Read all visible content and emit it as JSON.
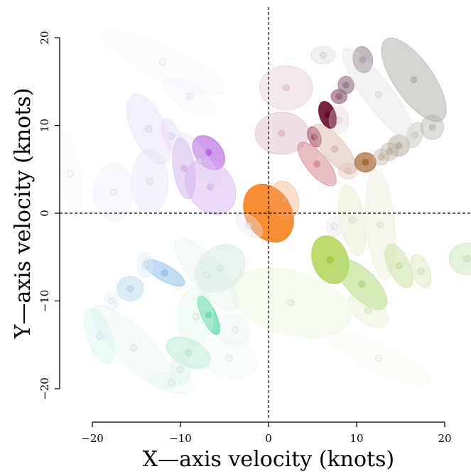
{
  "chart_data": {
    "type": "scatter",
    "title": "",
    "xlabel": "X—axis velocity (knots)",
    "ylabel": "Y—axis velocity (knots)",
    "xlim": [
      -20,
      20
    ],
    "ylim": [
      -20,
      20
    ],
    "x_ticks": [
      -20,
      -10,
      0,
      10,
      20
    ],
    "y_ticks": [
      -20,
      -10,
      0,
      10,
      20
    ],
    "x_tick_labels": [
      "−20",
      "−10",
      "0",
      "10",
      "20"
    ],
    "y_tick_labels": [
      "−20",
      "−10",
      "0",
      "10",
      "20"
    ],
    "reference_lines": [
      {
        "axis": "x",
        "value": 0,
        "style": "dashed"
      },
      {
        "axis": "y",
        "value": 0,
        "style": "dashed"
      }
    ],
    "grid": false,
    "legend": "none",
    "points": [
      {
        "x": 0.0,
        "y": 0.0,
        "rx": 2.6,
        "ry": 3.5,
        "angle": 30,
        "color": "#f5831f",
        "opacity": 0.92
      },
      {
        "x": 1.8,
        "y": 1.5,
        "rx": 1.6,
        "ry": 2.2,
        "angle": 15,
        "color": "#f5a46a",
        "opacity": 0.35
      },
      {
        "x": 2.0,
        "y": 14.3,
        "rx": 3.0,
        "ry": 2.5,
        "angle": 0,
        "color": "#dcb4c8",
        "opacity": 0.32
      },
      {
        "x": 1.5,
        "y": 9.1,
        "rx": 3.0,
        "ry": 2.4,
        "angle": 0,
        "color": "#d49ab4",
        "opacity": 0.32
      },
      {
        "x": 5.5,
        "y": 5.6,
        "rx": 1.2,
        "ry": 3.1,
        "angle": 40,
        "color": "#d47e8a",
        "opacity": 0.5
      },
      {
        "x": 5.2,
        "y": 8.7,
        "rx": 0.7,
        "ry": 1.2,
        "angle": 20,
        "color": "#a4485e",
        "opacity": 0.6
      },
      {
        "x": 6.7,
        "y": 11.2,
        "rx": 0.9,
        "ry": 1.6,
        "angle": 20,
        "color": "#6e0a2e",
        "opacity": 0.9
      },
      {
        "x": 8.0,
        "y": 13.3,
        "rx": 0.9,
        "ry": 0.8,
        "angle": 0,
        "color": "#9e6a80",
        "opacity": 0.7
      },
      {
        "x": 8.8,
        "y": 14.6,
        "rx": 0.9,
        "ry": 1.0,
        "angle": 0,
        "color": "#9a7888",
        "opacity": 0.65
      },
      {
        "x": 10.7,
        "y": 17.5,
        "rx": 1.1,
        "ry": 1.5,
        "angle": 10,
        "color": "#9a8a98",
        "opacity": 0.6
      },
      {
        "x": 6.2,
        "y": 18.0,
        "rx": 1.4,
        "ry": 1.0,
        "angle": 0,
        "color": "#d8ccd4",
        "opacity": 0.3
      },
      {
        "x": 7.5,
        "y": 7.3,
        "rx": 1.3,
        "ry": 3.5,
        "angle": 40,
        "color": "#d4a89a",
        "opacity": 0.4
      },
      {
        "x": 8.0,
        "y": 10.6,
        "rx": 1.1,
        "ry": 1.5,
        "angle": 0,
        "color": "#e0ccd2",
        "opacity": 0.3
      },
      {
        "x": 9.0,
        "y": 4.8,
        "rx": 1.1,
        "ry": 0.9,
        "angle": 0,
        "color": "#e2c0b0",
        "opacity": 0.35
      },
      {
        "x": 11.0,
        "y": 5.8,
        "rx": 1.2,
        "ry": 1.1,
        "angle": 0,
        "color": "#a8662e",
        "opacity": 0.7
      },
      {
        "x": 12.8,
        "y": 6.4,
        "rx": 0.9,
        "ry": 0.9,
        "angle": 0,
        "color": "#c8b0a0",
        "opacity": 0.4
      },
      {
        "x": 13.7,
        "y": 7.0,
        "rx": 1.0,
        "ry": 1.0,
        "angle": 0,
        "color": "#c0b4a0",
        "opacity": 0.45
      },
      {
        "x": 14.8,
        "y": 7.7,
        "rx": 1.2,
        "ry": 1.2,
        "angle": 0,
        "color": "#b0aa9a",
        "opacity": 0.5
      },
      {
        "x": 16.6,
        "y": 8.9,
        "rx": 0.9,
        "ry": 1.5,
        "angle": -20,
        "color": "#c4c4b4",
        "opacity": 0.45
      },
      {
        "x": 18.6,
        "y": 9.8,
        "rx": 1.3,
        "ry": 1.4,
        "angle": 0,
        "color": "#b4b8a8",
        "opacity": 0.45
      },
      {
        "x": 12.5,
        "y": 13.5,
        "rx": 1.6,
        "ry": 6.5,
        "angle": 37,
        "color": "#d8d8d8",
        "opacity": 0.3
      },
      {
        "x": 16.5,
        "y": 15.2,
        "rx": 2.2,
        "ry": 5.6,
        "angle": 35,
        "color": "#a8aca4",
        "opacity": 0.5
      },
      {
        "x": 9.5,
        "y": -0.8,
        "rx": 1.4,
        "ry": 4.1,
        "angle": 10,
        "color": "#e6e6c4",
        "opacity": 0.4
      },
      {
        "x": 12.7,
        "y": -1.3,
        "rx": 1.6,
        "ry": 6.3,
        "angle": 5,
        "color": "#e4e6cc",
        "opacity": 0.35
      },
      {
        "x": 7.0,
        "y": -5.3,
        "rx": 2.0,
        "ry": 2.8,
        "angle": 20,
        "color": "#a2cc32",
        "opacity": 0.7
      },
      {
        "x": 10.6,
        "y": -8.1,
        "rx": 1.6,
        "ry": 3.7,
        "angle": 45,
        "color": "#b2dc7a",
        "opacity": 0.55
      },
      {
        "x": 14.8,
        "y": -6.0,
        "rx": 1.2,
        "ry": 2.7,
        "angle": 25,
        "color": "#c8e29a",
        "opacity": 0.5
      },
      {
        "x": 17.3,
        "y": -6.6,
        "rx": 1.0,
        "ry": 2.0,
        "angle": 20,
        "color": "#d8e8b8",
        "opacity": 0.45
      },
      {
        "x": 22.5,
        "y": -5.2,
        "rx": 2.0,
        "ry": 1.8,
        "angle": 0,
        "color": "#cce4b8",
        "opacity": 0.5
      },
      {
        "x": 11.3,
        "y": -11.1,
        "rx": 1.4,
        "ry": 2.6,
        "angle": 55,
        "color": "#dcecc0",
        "opacity": 0.35
      },
      {
        "x": 2.5,
        "y": -10.2,
        "rx": 3.6,
        "ry": 7.0,
        "angle": 75,
        "color": "#e8f4d8",
        "opacity": 0.4
      },
      {
        "x": 12.5,
        "y": -16.5,
        "rx": 1.6,
        "ry": 6.5,
        "angle": 65,
        "color": "#eef4e4",
        "opacity": 0.25
      },
      {
        "x": 7.5,
        "y": -1.5,
        "rx": 0.9,
        "ry": 1.2,
        "angle": 0,
        "color": "#ececec",
        "opacity": 0.5
      },
      {
        "x": -2.2,
        "y": -1.4,
        "rx": 1.0,
        "ry": 1.8,
        "angle": 50,
        "color": "#e8e2f0",
        "opacity": 0.4
      },
      {
        "x": -6.8,
        "y": 6.9,
        "rx": 1.5,
        "ry": 2.2,
        "angle": 40,
        "color": "#b25ce0",
        "opacity": 0.6
      },
      {
        "x": -9.6,
        "y": 5.1,
        "rx": 1.2,
        "ry": 3.5,
        "angle": 8,
        "color": "#cba8ec",
        "opacity": 0.45
      },
      {
        "x": -6.6,
        "y": 3.0,
        "rx": 2.6,
        "ry": 3.4,
        "angle": 35,
        "color": "#d4aef0",
        "opacity": 0.45
      },
      {
        "x": -7.8,
        "y": 6.0,
        "rx": 1.0,
        "ry": 3.8,
        "angle": 35,
        "color": "#e4d4f4",
        "opacity": 0.3
      },
      {
        "x": -11.0,
        "y": 8.8,
        "rx": 0.9,
        "ry": 2.1,
        "angle": 20,
        "color": "#e0d4f4",
        "opacity": 0.4
      },
      {
        "x": -13.6,
        "y": 9.6,
        "rx": 1.9,
        "ry": 4.3,
        "angle": 25,
        "color": "#e4daf6",
        "opacity": 0.4
      },
      {
        "x": -13.5,
        "y": 3.6,
        "rx": 2.1,
        "ry": 3.6,
        "angle": 0,
        "color": "#e4e0f6",
        "opacity": 0.4
      },
      {
        "x": -17.6,
        "y": 2.4,
        "rx": 2.2,
        "ry": 3.3,
        "angle": 0,
        "color": "#eceaf8",
        "opacity": 0.4
      },
      {
        "x": -9.0,
        "y": 13.3,
        "rx": 1.4,
        "ry": 3.4,
        "angle": 60,
        "color": "#eeeaf6",
        "opacity": 0.3
      },
      {
        "x": -12.0,
        "y": 17.2,
        "rx": 1.9,
        "ry": 7.8,
        "angle": 65,
        "color": "#f2f0f8",
        "opacity": 0.3
      },
      {
        "x": -22.5,
        "y": 4.5,
        "rx": 1.1,
        "ry": 5.0,
        "angle": 8,
        "color": "#f2f0f8",
        "opacity": 0.3
      },
      {
        "x": -11.8,
        "y": -6.8,
        "rx": 0.9,
        "ry": 2.6,
        "angle": 60,
        "color": "#8ec0ec",
        "opacity": 0.55
      },
      {
        "x": -15.7,
        "y": -8.6,
        "rx": 1.5,
        "ry": 1.4,
        "angle": 0,
        "color": "#b8dcf0",
        "opacity": 0.5
      },
      {
        "x": -14.0,
        "y": -5.9,
        "rx": 0.9,
        "ry": 1.4,
        "angle": 0,
        "color": "#d6eaf6",
        "opacity": 0.4
      },
      {
        "x": -17.8,
        "y": -10.0,
        "rx": 0.8,
        "ry": 1.0,
        "angle": 0,
        "color": "#e0f0f8",
        "opacity": 0.4
      },
      {
        "x": -6.8,
        "y": -11.6,
        "rx": 0.8,
        "ry": 2.4,
        "angle": 25,
        "color": "#22d48a",
        "opacity": 0.55
      },
      {
        "x": -5.5,
        "y": -6.3,
        "rx": 2.4,
        "ry": 3.1,
        "angle": -50,
        "color": "#cce8dc",
        "opacity": 0.45
      },
      {
        "x": -7.0,
        "y": -7.0,
        "rx": 1.8,
        "ry": 5.2,
        "angle": 40,
        "color": "#dcf2e6",
        "opacity": 0.35
      },
      {
        "x": -8.3,
        "y": -11.8,
        "rx": 2.0,
        "ry": 3.3,
        "angle": 0,
        "color": "#dcf4e6",
        "opacity": 0.35
      },
      {
        "x": -3.8,
        "y": -13.3,
        "rx": 1.7,
        "ry": 1.8,
        "angle": 0,
        "color": "#e2f4ea",
        "opacity": 0.35
      },
      {
        "x": -9.1,
        "y": -15.9,
        "rx": 1.5,
        "ry": 2.7,
        "angle": 65,
        "color": "#b4ecd2",
        "opacity": 0.5
      },
      {
        "x": -10.0,
        "y": -17.8,
        "rx": 1.0,
        "ry": 1.8,
        "angle": 15,
        "color": "#d4f0e4",
        "opacity": 0.4
      },
      {
        "x": -15.3,
        "y": -15.3,
        "rx": 2.0,
        "ry": 6.5,
        "angle": 45,
        "color": "#ddf2ea",
        "opacity": 0.35
      },
      {
        "x": -19.2,
        "y": -14.0,
        "rx": 1.4,
        "ry": 3.3,
        "angle": 20,
        "color": "#d4f4f0",
        "opacity": 0.45
      },
      {
        "x": -11.0,
        "y": -19.3,
        "rx": 1.1,
        "ry": 2.7,
        "angle": 80,
        "color": "#e2f6ee",
        "opacity": 0.35
      },
      {
        "x": -4.5,
        "y": -16.5,
        "rx": 2.3,
        "ry": 3.3,
        "angle": 70,
        "color": "#e6f6ee",
        "opacity": 0.3
      }
    ]
  }
}
